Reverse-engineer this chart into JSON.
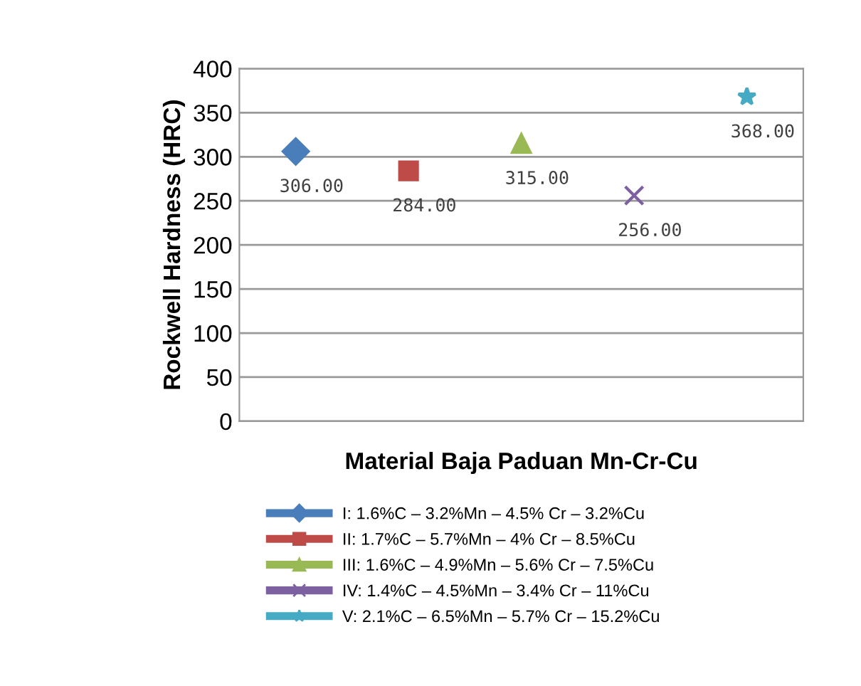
{
  "chart_data": {
    "type": "line",
    "xlabel": "Material Baja Paduan Mn-Cr-Cu",
    "ylabel": "Rockwell Hardness (HRC)",
    "categories": [
      null,
      null,
      null,
      null,
      null
    ],
    "ylim": [
      0,
      400
    ],
    "yticks": [
      0,
      50,
      100,
      150,
      200,
      250,
      300,
      350,
      400
    ],
    "grid": "y",
    "legend": "bottom",
    "line_style": "solid",
    "series": [
      {
        "name": "I: 1.6%C – 3.2%Mn – 4.5% Cr – 3.2%Cu",
        "color": "#4a7ebb",
        "marker": "diamond",
        "values": [
          306,
          null,
          null,
          null,
          null
        ],
        "value_labels": [
          "306.00",
          null,
          null,
          null,
          null
        ]
      },
      {
        "name": "II: 1.7%C – 5.7%Mn – 4% Cr – 8.5%Cu",
        "color": "#be4b48",
        "marker": "square",
        "values": [
          null,
          284,
          null,
          null,
          null
        ],
        "value_labels": [
          null,
          "284.00",
          null,
          null,
          null
        ]
      },
      {
        "name": "III: 1.6%C – 4.9%Mn – 5.6% Cr – 7.5%Cu",
        "color": "#98b954",
        "marker": "triangle",
        "values": [
          null,
          null,
          315,
          null,
          null
        ],
        "value_labels": [
          null,
          null,
          "315.00",
          null,
          null
        ]
      },
      {
        "name": "IV: 1.4%C – 4.5%Mn – 3.4% Cr – 11%Cu",
        "color": "#7d60a0",
        "marker": "cross",
        "values": [
          null,
          null,
          null,
          256,
          null
        ],
        "value_labels": [
          null,
          null,
          null,
          "256.00",
          null
        ]
      },
      {
        "name": "V: 2.1%C – 6.5%Mn – 5.7% Cr – 15.2%Cu",
        "color": "#46aac5",
        "marker": "star",
        "values": [
          null,
          null,
          null,
          null,
          368
        ],
        "value_labels": [
          null,
          null,
          null,
          null,
          "368.00"
        ]
      }
    ]
  }
}
